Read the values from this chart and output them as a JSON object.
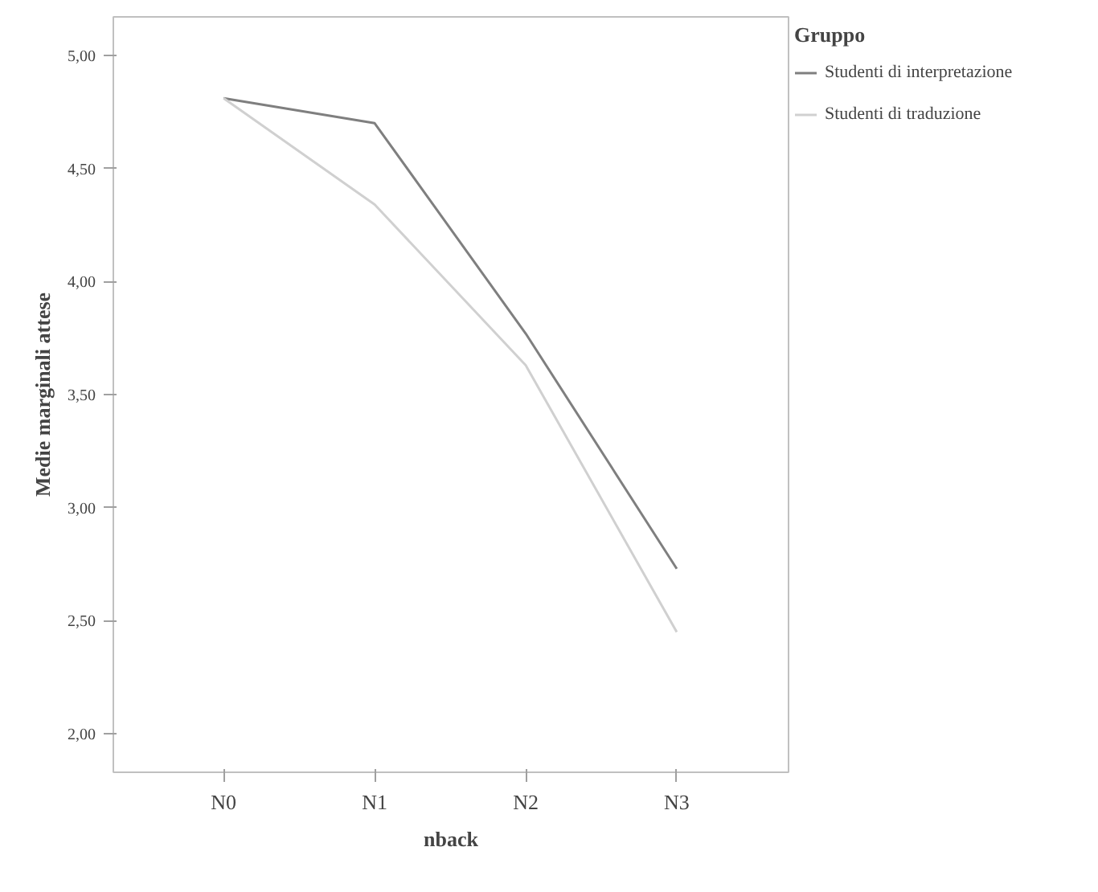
{
  "chart_data": {
    "type": "line",
    "xlabel": "nback",
    "ylabel": "Medie marginali attese",
    "legend_title": "Gruppo",
    "legend": "right",
    "grid": false,
    "marker": "none",
    "line_style": "solid",
    "categories": [
      "N0",
      "N1",
      "N2",
      "N3"
    ],
    "ylim": [
      1.83,
      5.17
    ],
    "yticks": [
      {
        "value": 2,
        "label": "2,00"
      },
      {
        "value": 2.5,
        "label": "2,50"
      },
      {
        "value": 3,
        "label": "3,00"
      },
      {
        "value": 3.5,
        "label": "3,50"
      },
      {
        "value": 4,
        "label": "4,00"
      },
      {
        "value": 4.5,
        "label": "4,50"
      },
      {
        "value": 5,
        "label": "5,00"
      }
    ],
    "series": [
      {
        "name": "Studenti di interpretazione",
        "color": "#7f7f7f",
        "values": [
          4.81,
          4.7,
          3.77,
          2.73
        ]
      },
      {
        "name": "Studenti di traduzione",
        "color": "#d0d0d0",
        "values": [
          4.81,
          4.34,
          3.63,
          2.45
        ]
      }
    ]
  }
}
